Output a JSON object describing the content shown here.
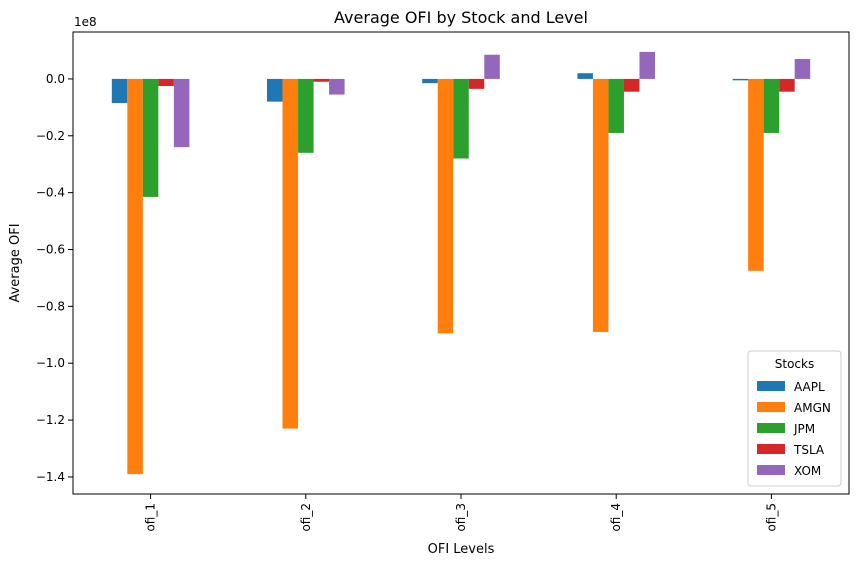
{
  "chart_data": {
    "type": "bar",
    "title": "Average OFI by Stock and Level",
    "xlabel": "OFI Levels",
    "ylabel": "Average OFI",
    "scale_label": "1e8",
    "categories": [
      "ofi_1",
      "ofi_2",
      "ofi_3",
      "ofi_4",
      "ofi_5"
    ],
    "y_ticks": [
      0.0,
      -0.2,
      -0.4,
      -0.6,
      -0.8,
      -1.0,
      -1.2,
      -1.4
    ],
    "y_tick_labels": [
      "0.0",
      "−0.2",
      "−0.4",
      "−0.6",
      "−0.8",
      "−1.0",
      "−1.2",
      "−1.4"
    ],
    "ylim": [
      -1.46,
      0.165
    ],
    "grid": false,
    "legend": {
      "title": "Stocks",
      "placement": "lower-right"
    },
    "series": [
      {
        "name": "AAPL",
        "color": "#1f77b4",
        "values": [
          -0.085,
          -0.08,
          -0.015,
          0.02,
          -0.005
        ]
      },
      {
        "name": "AMGN",
        "color": "#ff7f0e",
        "values": [
          -1.39,
          -1.23,
          -0.895,
          -0.89,
          -0.675
        ]
      },
      {
        "name": "JPM",
        "color": "#2ca02c",
        "values": [
          -0.415,
          -0.26,
          -0.28,
          -0.19,
          -0.19
        ]
      },
      {
        "name": "TSLA",
        "color": "#d62728",
        "values": [
          -0.025,
          -0.01,
          -0.035,
          -0.045,
          -0.045
        ]
      },
      {
        "name": "XOM",
        "color": "#9467bd",
        "values": [
          -0.24,
          -0.055,
          0.085,
          0.095,
          0.07
        ]
      }
    ]
  }
}
